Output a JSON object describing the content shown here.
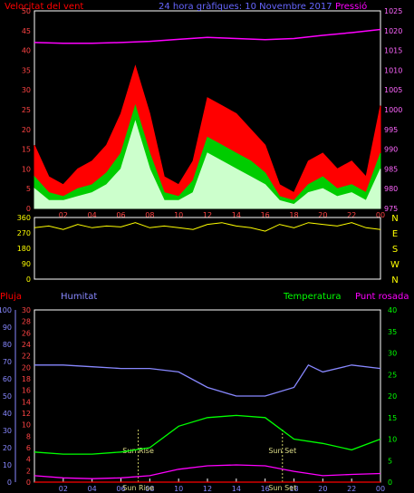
{
  "chart_data": [
    {
      "type": "line",
      "title": "24 hora gràfiques: 10 Novembre 2017",
      "left_axis_label": "Velocitat del vent",
      "right_axis_label": "Pressió",
      "x_ticks": [
        "02",
        "04",
        "06",
        "08",
        "10",
        "12",
        "14",
        "16",
        "18",
        "20",
        "22",
        "00"
      ],
      "y_left_ticks": [
        "0",
        "5",
        "10",
        "15",
        "20",
        "25",
        "30",
        "35",
        "40",
        "45",
        "50"
      ],
      "y_left_range": [
        0,
        50
      ],
      "y_right_ticks": [
        "975",
        "980",
        "985",
        "990",
        "995",
        "1000",
        "1005",
        "1010",
        "1015",
        "1020",
        "1025"
      ],
      "y_right_range": [
        975,
        1025
      ],
      "series": [
        {
          "role": "gust",
          "color": "#ff0000",
          "x": [
            0,
            1,
            2,
            3,
            4,
            5,
            6,
            7,
            8,
            9,
            10,
            11,
            12,
            13,
            14,
            15,
            16,
            17,
            18,
            19,
            20,
            21,
            22,
            23,
            24
          ],
          "values": [
            16,
            8,
            6,
            10,
            12,
            16,
            24,
            36,
            24,
            8,
            6,
            12,
            28,
            26,
            24,
            20,
            16,
            6,
            4,
            12,
            14,
            10,
            12,
            8,
            26
          ]
        },
        {
          "role": "average",
          "color": "#00cc00",
          "x": [
            0,
            1,
            2,
            3,
            4,
            5,
            6,
            7,
            8,
            9,
            10,
            11,
            12,
            13,
            14,
            15,
            16,
            17,
            18,
            19,
            20,
            21,
            22,
            23,
            24
          ],
          "values": [
            8,
            4,
            3,
            5,
            6,
            9,
            14,
            26,
            14,
            4,
            3,
            7,
            18,
            16,
            14,
            12,
            9,
            3,
            2,
            6,
            8,
            5,
            6,
            4,
            14
          ]
        },
        {
          "role": "wind",
          "color": "#ccffcc",
          "x": [
            0,
            1,
            2,
            3,
            4,
            5,
            6,
            7,
            8,
            9,
            10,
            11,
            12,
            13,
            14,
            15,
            16,
            17,
            18,
            19,
            20,
            21,
            22,
            23,
            24
          ],
          "values": [
            5,
            2,
            2,
            3,
            4,
            6,
            10,
            22,
            10,
            2,
            2,
            4,
            14,
            12,
            10,
            8,
            6,
            2,
            1,
            4,
            5,
            3,
            4,
            2,
            10
          ]
        },
        {
          "role": "pressure",
          "color": "#ff00ff",
          "axis": "right",
          "x": [
            0,
            2,
            4,
            6,
            8,
            10,
            12,
            14,
            16,
            18,
            20,
            22,
            24
          ],
          "values": [
            1017,
            1016.8,
            1016.8,
            1017,
            1017.3,
            1017.8,
            1018.3,
            1018,
            1017.7,
            1018,
            1018.8,
            1019.5,
            1020.3
          ]
        }
      ]
    },
    {
      "type": "line",
      "y_left_ticks": [
        "0",
        "90",
        "180",
        "270",
        "360"
      ],
      "y_left_range": [
        0,
        360
      ],
      "y_right_ticks": [
        "N",
        "W",
        "S",
        "E",
        "N"
      ],
      "x_ticks": [
        "02",
        "04",
        "06",
        "08",
        "10",
        "12",
        "14",
        "16",
        "18",
        "20",
        "22",
        "00"
      ],
      "series": [
        {
          "role": "wind-direction",
          "color": "#ffff00",
          "x": [
            0,
            1,
            2,
            3,
            4,
            5,
            6,
            7,
            8,
            9,
            10,
            11,
            12,
            13,
            14,
            15,
            16,
            17,
            18,
            19,
            20,
            21,
            22,
            23,
            24
          ],
          "values": [
            300,
            310,
            290,
            320,
            300,
            310,
            305,
            330,
            300,
            310,
            300,
            290,
            320,
            330,
            310,
            300,
            280,
            320,
            300,
            330,
            320,
            310,
            330,
            300,
            290
          ]
        }
      ]
    },
    {
      "type": "line",
      "labels": {
        "rain": "Pluja",
        "humidity": "Humitat",
        "temperature": "Temperatura",
        "dewpoint": "Punt rosada"
      },
      "annotations": [
        "Sun Rise",
        "Sun Set",
        "Sun Rise",
        "Sun Set"
      ],
      "x_ticks": [
        "02",
        "04",
        "06",
        "08",
        "10",
        "12",
        "14",
        "16",
        "18",
        "20",
        "22",
        "00"
      ],
      "humidity_ticks": [
        "0",
        "10",
        "20",
        "30",
        "40",
        "50",
        "60",
        "70",
        "80",
        "90",
        "100"
      ],
      "rain_ticks": [
        "0",
        "2",
        "4",
        "6",
        "8",
        "10",
        "12",
        "14",
        "16",
        "18",
        "20",
        "22",
        "24",
        "26",
        "28",
        "30"
      ],
      "temp_ticks": [
        "0",
        "5",
        "10",
        "15",
        "20",
        "25",
        "30",
        "35",
        "40"
      ],
      "series": [
        {
          "role": "humidity",
          "color": "#8888ff",
          "x": [
            0,
            2,
            4,
            6,
            8,
            10,
            12,
            14,
            16,
            18,
            19,
            20,
            22,
            24
          ],
          "values": [
            68,
            68,
            67,
            66,
            66,
            64,
            55,
            50,
            50,
            55,
            68,
            64,
            68,
            66
          ]
        },
        {
          "role": "temperature",
          "color": "#00ff00",
          "x": [
            0,
            2,
            4,
            6,
            8,
            10,
            12,
            14,
            16,
            18,
            20,
            22,
            24
          ],
          "values": [
            7,
            6.5,
            6.5,
            7,
            8,
            13,
            15,
            15.5,
            15,
            10,
            9,
            7.5,
            10
          ]
        },
        {
          "role": "dewpoint",
          "color": "#ff00ff",
          "x": [
            0,
            2,
            4,
            6,
            8,
            10,
            12,
            14,
            16,
            18,
            20,
            22,
            24
          ],
          "values": [
            1.5,
            1,
            0.8,
            1,
            1.5,
            3,
            3.8,
            4,
            3.8,
            2.5,
            1.5,
            1.8,
            2
          ]
        },
        {
          "role": "rain",
          "color": "#ff0000",
          "x": [
            0,
            24
          ],
          "values": [
            0,
            0
          ]
        }
      ]
    }
  ]
}
